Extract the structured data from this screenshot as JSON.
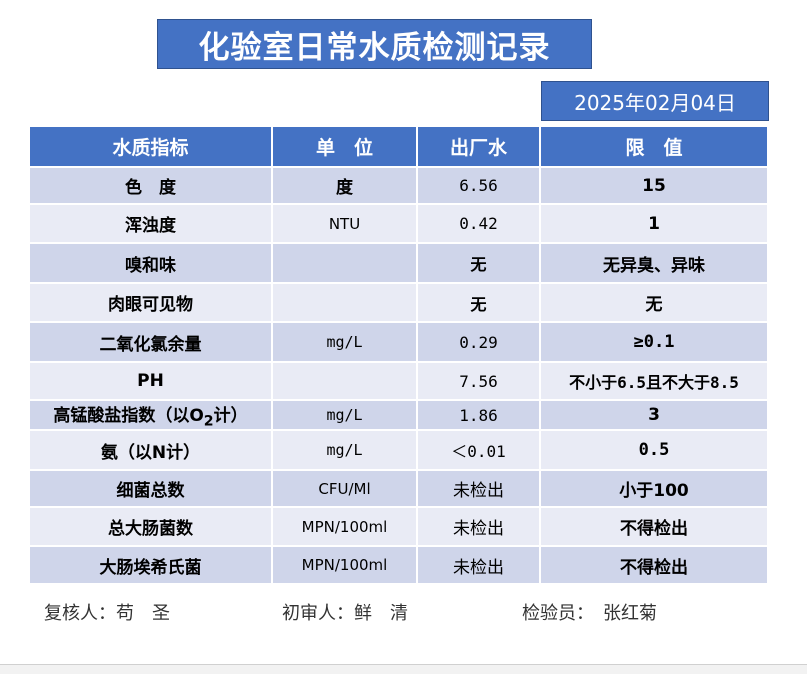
{
  "title": "化验室日常水质检测记录",
  "date": "2025年02月04日",
  "headers": [
    "水质指标",
    "单　位",
    "出厂水",
    "限　值"
  ],
  "rows": [
    {
      "name": "色　度",
      "unit": "度",
      "value": "6.56",
      "limit": "15"
    },
    {
      "name": "浑浊度",
      "unit": "NTU",
      "value": "0.42",
      "limit": "1"
    },
    {
      "name": "嗅和味",
      "unit": "",
      "value": "无",
      "limit": "无异臭、异味"
    },
    {
      "name": "肉眼可见物",
      "unit": "",
      "value": "无",
      "limit": "无"
    },
    {
      "name": "二氧化氯余量",
      "unit": "mg/L",
      "value": "0.29",
      "limit": "≥0.1"
    },
    {
      "name": "PH",
      "unit": "",
      "value": "7.56",
      "limit": "不小于6.5且不大于8.5"
    },
    {
      "name_pre": "高锰酸盐指数（以O",
      "name_sub": "2",
      "name_post": "计）",
      "unit": "mg/L",
      "value": "1.86",
      "limit": "3"
    },
    {
      "name": "氨（以N计）",
      "unit": "mg/L",
      "value": "＜0.01",
      "limit": "0.5"
    },
    {
      "name": "细菌总数",
      "unit": "CFU/Ml",
      "value": "未检出",
      "limit": "小于100"
    },
    {
      "name": "总大肠菌数",
      "unit": "MPN/100ml",
      "value": "未检出",
      "limit": "不得检出"
    },
    {
      "name": "大肠埃希氏菌",
      "unit": "MPN/100ml",
      "value": "未检出",
      "limit": "不得检出"
    }
  ],
  "footer": {
    "reviewer": "复核人：苟　圣",
    "preliminary": "初审人：鲜　清",
    "inspector": "检验员：　张红菊"
  },
  "colors": {
    "header_bg": "#4472c4",
    "row_dark": "#cfd5ea",
    "row_light": "#e9ebf5"
  }
}
